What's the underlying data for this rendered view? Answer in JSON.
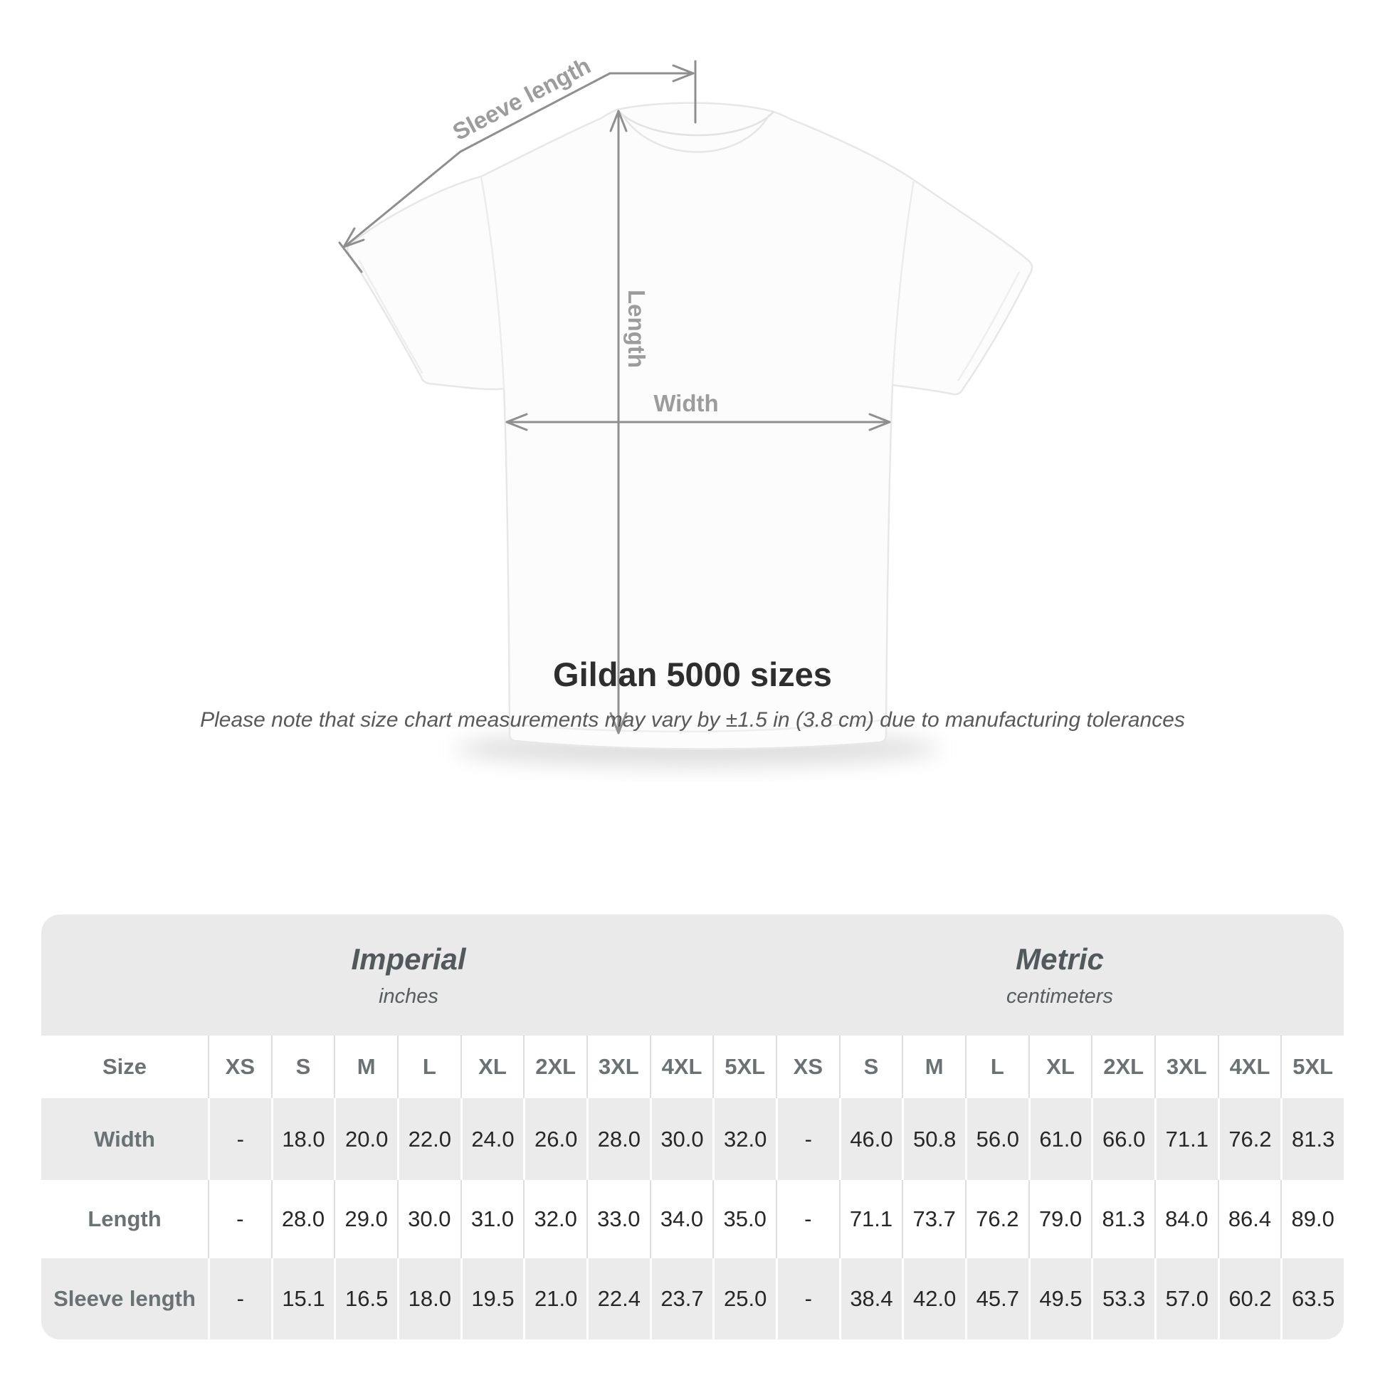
{
  "diagram": {
    "sleeve_length_label": "Sleeve length",
    "length_label": "Length",
    "width_label": "Width",
    "line_color": "#8f8f8f",
    "label_color": "#9c9c9c"
  },
  "title": "Gildan 5000 sizes",
  "note": "Please note that size chart measurements may vary by ±1.5 in (3.8 cm) due to manufacturing tolerances",
  "table": {
    "unit_groups": [
      {
        "label": "Imperial",
        "sublabel": "inches"
      },
      {
        "label": "Metric",
        "sublabel": "centimeters"
      }
    ],
    "size_header_label": "Size",
    "sizes": [
      "XS",
      "S",
      "M",
      "L",
      "XL",
      "2XL",
      "3XL",
      "4XL",
      "5XL"
    ],
    "rows": [
      {
        "label": "Width",
        "imperial": [
          "-",
          "18.0",
          "20.0",
          "22.0",
          "24.0",
          "26.0",
          "28.0",
          "30.0",
          "32.0"
        ],
        "metric": [
          "-",
          "46.0",
          "50.8",
          "56.0",
          "61.0",
          "66.0",
          "71.1",
          "76.2",
          "81.3"
        ]
      },
      {
        "label": "Length",
        "imperial": [
          "-",
          "28.0",
          "29.0",
          "30.0",
          "31.0",
          "32.0",
          "33.0",
          "34.0",
          "35.0"
        ],
        "metric": [
          "-",
          "71.1",
          "73.7",
          "76.2",
          "79.0",
          "81.3",
          "84.0",
          "86.4",
          "89.0"
        ]
      },
      {
        "label": "Sleeve length",
        "imperial": [
          "-",
          "15.1",
          "16.5",
          "18.0",
          "19.5",
          "21.0",
          "22.4",
          "23.7",
          "25.0"
        ],
        "metric": [
          "-",
          "38.4",
          "42.0",
          "45.7",
          "49.5",
          "53.3",
          "57.0",
          "60.2",
          "63.5"
        ]
      }
    ]
  },
  "chart_data": {
    "type": "table",
    "title": "Gildan 5000 sizes",
    "columns": [
      "XS",
      "S",
      "M",
      "L",
      "XL",
      "2XL",
      "3XL",
      "4XL",
      "5XL"
    ],
    "series": [
      {
        "name": "Width (in)",
        "values": [
          null,
          18.0,
          20.0,
          22.0,
          24.0,
          26.0,
          28.0,
          30.0,
          32.0
        ]
      },
      {
        "name": "Length (in)",
        "values": [
          null,
          28.0,
          29.0,
          30.0,
          31.0,
          32.0,
          33.0,
          34.0,
          35.0
        ]
      },
      {
        "name": "Sleeve length (in)",
        "values": [
          null,
          15.1,
          16.5,
          18.0,
          19.5,
          21.0,
          22.4,
          23.7,
          25.0
        ]
      },
      {
        "name": "Width (cm)",
        "values": [
          null,
          46.0,
          50.8,
          56.0,
          61.0,
          66.0,
          71.1,
          76.2,
          81.3
        ]
      },
      {
        "name": "Length (cm)",
        "values": [
          null,
          71.1,
          73.7,
          76.2,
          79.0,
          81.3,
          84.0,
          86.4,
          89.0
        ]
      },
      {
        "name": "Sleeve length (cm)",
        "values": [
          null,
          38.4,
          42.0,
          45.7,
          49.5,
          53.3,
          57.0,
          60.2,
          63.5
        ]
      }
    ]
  }
}
